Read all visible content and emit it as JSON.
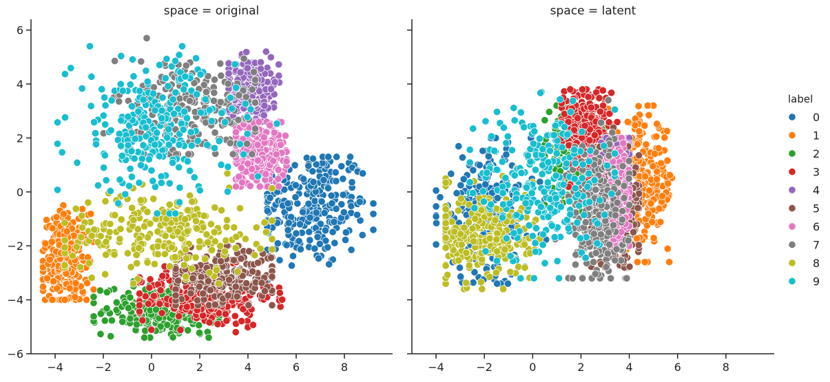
{
  "chart_data": [
    {
      "type": "scatter",
      "title": "space = original",
      "xlim": [
        -5,
        10
      ],
      "ylim": [
        -6,
        6.4
      ],
      "x_ticks": [
        -4,
        -2,
        0,
        2,
        4,
        6,
        8
      ],
      "y_ticks": [
        -6,
        -4,
        -2,
        0,
        2,
        4,
        6
      ],
      "x_tick_labels": [
        "−4",
        "−2",
        "0",
        "2",
        "4",
        "6",
        "8"
      ],
      "y_tick_labels": [
        "−6",
        "−4",
        "−2",
        "0",
        "2",
        "4",
        "6"
      ],
      "clusters": [
        {
          "label": "0",
          "center": [
            6.6,
            -0.6
          ],
          "spread": [
            1.2,
            1.1
          ],
          "extent": [
            4.8,
            9.2,
            -3.3,
            1.3
          ]
        },
        {
          "label": "1",
          "center": [
            -3.6,
            -2.6
          ],
          "spread": [
            0.5,
            0.9
          ],
          "extent": [
            -4.5,
            -2.4,
            -4.0,
            -0.5
          ]
        },
        {
          "label": "2",
          "center": [
            0.6,
            -4.4
          ],
          "spread": [
            1.3,
            0.45
          ],
          "extent": [
            -2.4,
            2.8,
            -5.4,
            -3.3
          ]
        },
        {
          "label": "3",
          "center": [
            2.2,
            -3.9
          ],
          "spread": [
            1.4,
            0.55
          ],
          "extent": [
            -0.5,
            5.6,
            -5.2,
            -2.6
          ]
        },
        {
          "label": "4",
          "center": [
            4.1,
            3.8
          ],
          "spread": [
            0.6,
            0.6
          ],
          "extent": [
            3.2,
            5.3,
            2.6,
            5.2
          ]
        },
        {
          "label": "5",
          "center": [
            2.9,
            -3.1
          ],
          "spread": [
            1.2,
            0.5
          ],
          "extent": [
            1.0,
            5.0,
            -4.2,
            -2.0
          ]
        },
        {
          "label": "6",
          "center": [
            4.4,
            1.5
          ],
          "spread": [
            0.6,
            0.6
          ],
          "extent": [
            3.5,
            5.6,
            0.2,
            2.6
          ]
        },
        {
          "label": "7",
          "center": [
            1.5,
            3.0
          ],
          "spread": [
            1.5,
            1.0
          ],
          "extent": [
            -2.8,
            4.3,
            1.4,
            5.7
          ]
        },
        {
          "label": "8",
          "center": [
            0.5,
            -1.5
          ],
          "spread": [
            2.0,
            0.75
          ],
          "extent": [
            -3.6,
            5.0,
            -3.4,
            1.4
          ]
        },
        {
          "label": "9",
          "center": [
            0.1,
            2.3
          ],
          "spread": [
            1.7,
            1.3
          ],
          "extent": [
            -3.9,
            5.2,
            -0.8,
            5.4
          ]
        }
      ]
    },
    {
      "type": "scatter",
      "title": "space = latent",
      "xlim": [
        -5,
        10
      ],
      "ylim": [
        -6,
        6.4
      ],
      "x_ticks": [
        -4,
        -2,
        0,
        2,
        4,
        6,
        8
      ],
      "y_ticks": [
        -6,
        -4,
        -2,
        0,
        2,
        4,
        6
      ],
      "x_tick_labels": [
        "−4",
        "−2",
        "0",
        "2",
        "4",
        "6",
        "8"
      ],
      "y_tick_labels": [],
      "clusters": [
        {
          "label": "0",
          "center": [
            -1.9,
            -0.9
          ],
          "spread": [
            1.0,
            1.2
          ],
          "extent": [
            -4.0,
            2.8,
            -3.4,
            2.0
          ]
        },
        {
          "label": "1",
          "center": [
            4.5,
            0.3
          ],
          "spread": [
            0.7,
            1.2
          ],
          "extent": [
            2.5,
            6.0,
            -2.6,
            3.2
          ]
        },
        {
          "label": "2",
          "center": [
            1.8,
            1.6
          ],
          "spread": [
            0.6,
            0.9
          ],
          "extent": [
            0.5,
            3.0,
            -3.4,
            3.2
          ]
        },
        {
          "label": "3",
          "center": [
            2.2,
            2.4
          ],
          "spread": [
            0.5,
            0.8
          ],
          "extent": [
            1.2,
            3.5,
            -3.0,
            3.8
          ]
        },
        {
          "label": "4",
          "center": [
            3.3,
            0.4
          ],
          "spread": [
            0.4,
            1.0
          ],
          "extent": [
            2.4,
            4.0,
            -2.0,
            2.0
          ]
        },
        {
          "label": "5",
          "center": [
            3.6,
            -0.6
          ],
          "spread": [
            0.45,
            1.1
          ],
          "extent": [
            2.4,
            4.4,
            -2.8,
            2.6
          ]
        },
        {
          "label": "6",
          "center": [
            3.4,
            -0.2
          ],
          "spread": [
            0.4,
            1.0
          ],
          "extent": [
            2.4,
            4.0,
            -2.0,
            2.0
          ]
        },
        {
          "label": "7",
          "center": [
            2.7,
            -0.8
          ],
          "spread": [
            0.6,
            1.3
          ],
          "extent": [
            -2.2,
            4.0,
            -3.2,
            3.4
          ]
        },
        {
          "label": "8",
          "center": [
            -2.0,
            -1.6
          ],
          "spread": [
            1.0,
            0.9
          ],
          "extent": [
            -3.6,
            2.6,
            -3.6,
            1.0
          ]
        },
        {
          "label": "9",
          "center": [
            0.4,
            0.3
          ],
          "spread": [
            1.3,
            1.5
          ],
          "extent": [
            -2.6,
            3.4,
            -3.2,
            4.2
          ]
        }
      ]
    }
  ],
  "legend": {
    "title": "label",
    "entries": [
      "0",
      "1",
      "2",
      "3",
      "4",
      "5",
      "6",
      "7",
      "8",
      "9"
    ]
  },
  "colors": {
    "0": "#1f77b4",
    "1": "#ff7f0e",
    "2": "#2ca02c",
    "3": "#d62728",
    "4": "#9467bd",
    "5": "#8c564b",
    "6": "#e377c2",
    "7": "#7f7f7f",
    "8": "#bcbd22",
    "9": "#17becf"
  }
}
